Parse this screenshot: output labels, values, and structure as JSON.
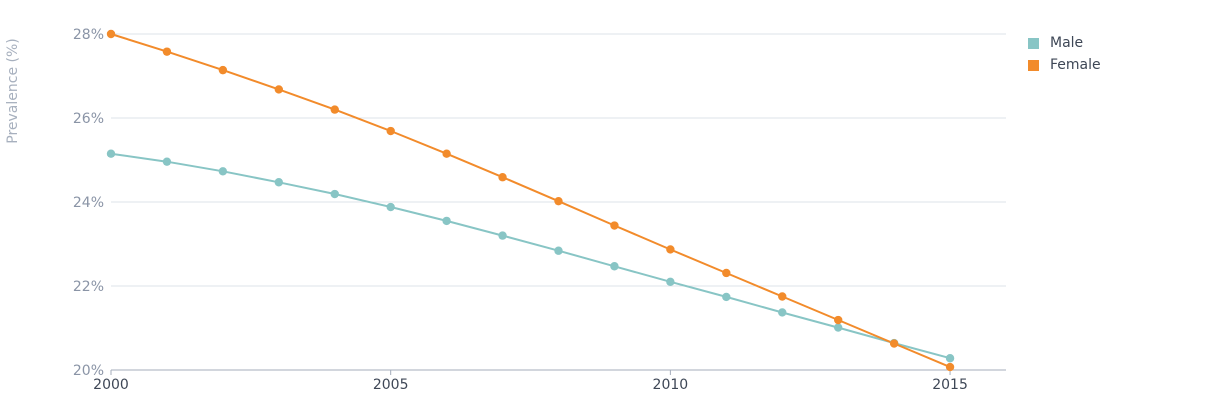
{
  "chart_data": {
    "type": "line",
    "ylabel": "Prevalence (%)",
    "xlim": [
      2000,
      2016
    ],
    "ylim": [
      20,
      28
    ],
    "y_ticks": [
      "20%",
      "22%",
      "24%",
      "26%",
      "28%"
    ],
    "y_tick_values": [
      20,
      22,
      24,
      26,
      28
    ],
    "x_ticks": [
      "2000",
      "2005",
      "2010",
      "2015"
    ],
    "x_tick_values": [
      2000,
      2005,
      2010,
      2015
    ],
    "grid": true,
    "legend_position": "top-right",
    "x": [
      2000,
      2001,
      2002,
      2003,
      2004,
      2005,
      2006,
      2007,
      2008,
      2009,
      2010,
      2011,
      2012,
      2013,
      2014,
      2015
    ],
    "series": [
      {
        "name": "Male",
        "color": "#88c5c5",
        "values": [
          25.15,
          24.96,
          24.73,
          24.47,
          24.19,
          23.88,
          23.55,
          23.2,
          22.84,
          22.47,
          22.1,
          21.74,
          21.37,
          21.01,
          20.64,
          20.28
        ]
      },
      {
        "name": "Female",
        "color": "#f28b2b",
        "values": [
          28.0,
          27.58,
          27.14,
          26.68,
          26.2,
          25.69,
          25.15,
          24.59,
          24.02,
          23.44,
          22.87,
          22.31,
          21.75,
          21.19,
          20.63,
          20.07
        ]
      }
    ]
  }
}
